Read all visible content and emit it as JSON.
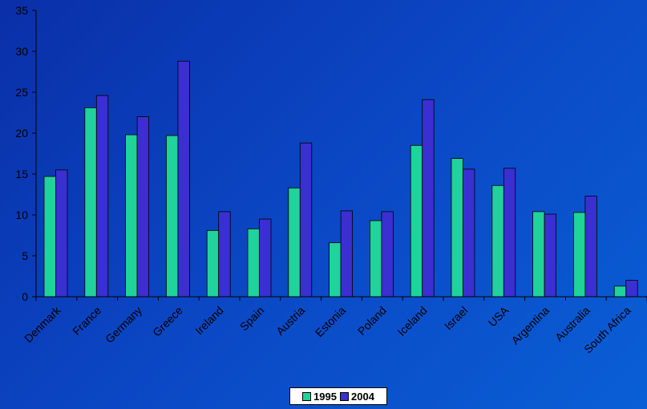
{
  "chart_data": {
    "type": "bar",
    "categories": [
      "Denmark",
      "France",
      "Germany",
      "Greece",
      "Ireland",
      "Spain",
      "Austria",
      "Estonia",
      "Poland",
      "Iceland",
      "Israel",
      "USA",
      "Argentina",
      "Australia",
      "South Africa"
    ],
    "series": [
      {
        "name": "1995",
        "color": "#1fd39a",
        "values": [
          14.7,
          23.1,
          19.8,
          19.7,
          8.1,
          8.3,
          13.3,
          6.6,
          9.3,
          18.5,
          16.9,
          13.6,
          10.4,
          10.3,
          1.3
        ]
      },
      {
        "name": "2004",
        "color": "#3a2fd0",
        "values": [
          15.5,
          24.6,
          22.0,
          28.8,
          10.4,
          9.5,
          18.8,
          10.5,
          10.4,
          24.1,
          15.6,
          15.7,
          10.1,
          12.3,
          2.0
        ]
      }
    ],
    "ylim": [
      0,
      35
    ],
    "yticks": [
      0,
      5,
      10,
      15,
      20,
      25,
      30,
      35
    ],
    "grid": false,
    "legend_position": "bottom"
  }
}
